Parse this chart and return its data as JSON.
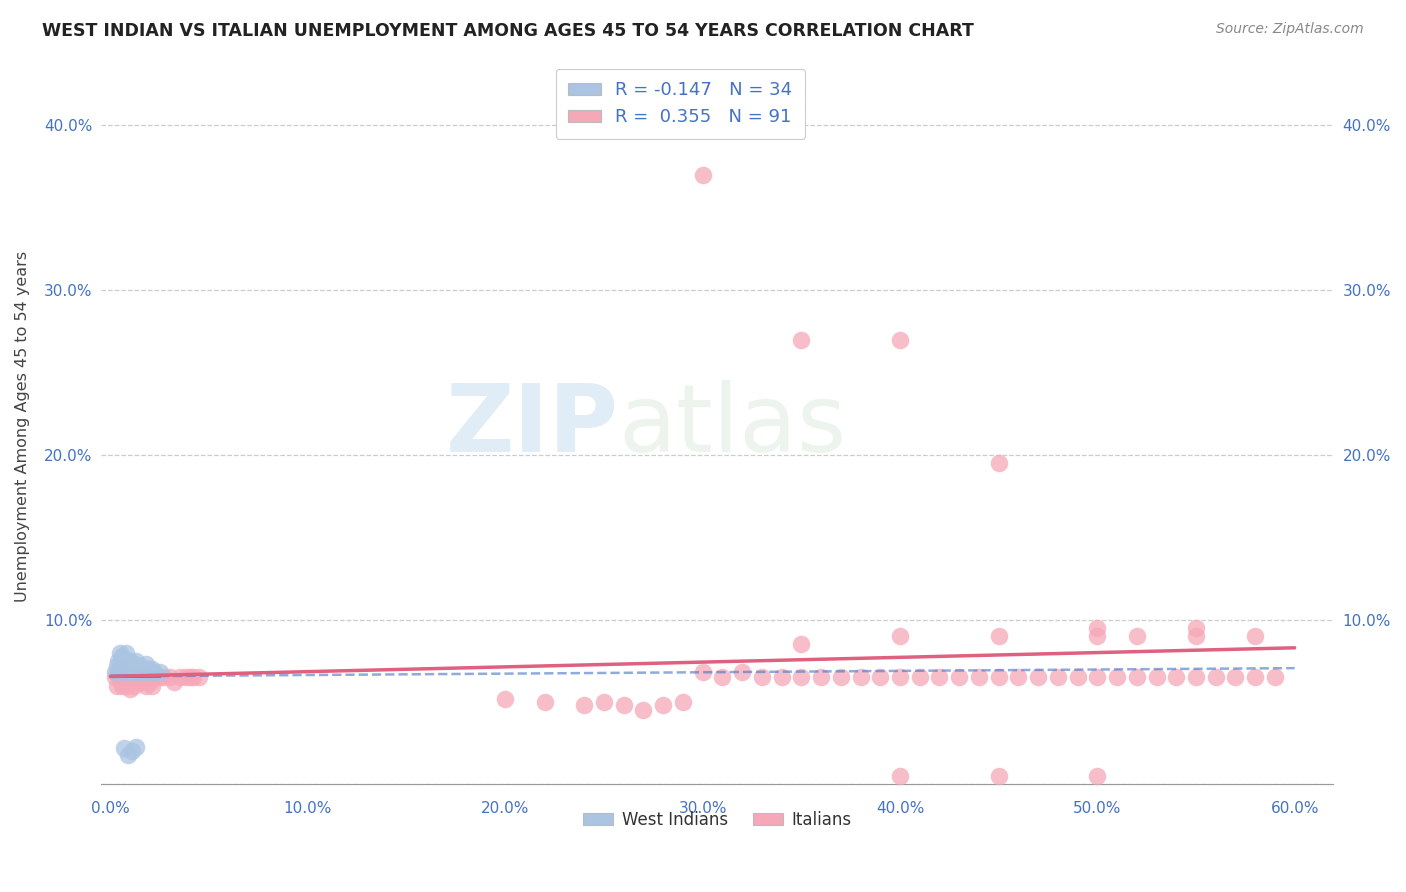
{
  "title": "WEST INDIAN VS ITALIAN UNEMPLOYMENT AMONG AGES 45 TO 54 YEARS CORRELATION CHART",
  "source": "Source: ZipAtlas.com",
  "ylabel": "Unemployment Among Ages 45 to 54 years",
  "xlim": [
    -0.005,
    0.62
  ],
  "ylim": [
    -0.005,
    0.44
  ],
  "xticks": [
    0.0,
    0.1,
    0.2,
    0.3,
    0.4,
    0.5,
    0.6
  ],
  "yticks": [
    0.0,
    0.1,
    0.2,
    0.3,
    0.4
  ],
  "west_indian_R": -0.147,
  "west_indian_N": 34,
  "italian_R": 0.355,
  "italian_N": 91,
  "west_indian_color": "#aac4e2",
  "italian_color": "#f5a8b8",
  "west_indian_line_color": "#4472c4",
  "italian_line_color": "#e06080",
  "background_color": "#ffffff",
  "grid_color": "#cccccc",
  "watermark_zip": "ZIP",
  "watermark_atlas": "atlas",
  "wi_x": [
    0.002,
    0.003,
    0.004,
    0.005,
    0.005,
    0.006,
    0.006,
    0.007,
    0.007,
    0.008,
    0.008,
    0.009,
    0.009,
    0.01,
    0.01,
    0.011,
    0.012,
    0.012,
    0.013,
    0.013,
    0.014,
    0.015,
    0.016,
    0.017,
    0.018,
    0.019,
    0.02,
    0.021,
    0.022,
    0.025,
    0.007,
    0.009,
    0.011,
    0.013
  ],
  "wi_y": [
    0.068,
    0.072,
    0.075,
    0.07,
    0.08,
    0.073,
    0.078,
    0.068,
    0.075,
    0.072,
    0.08,
    0.073,
    0.068,
    0.075,
    0.07,
    0.072,
    0.068,
    0.073,
    0.07,
    0.075,
    0.068,
    0.072,
    0.07,
    0.068,
    0.073,
    0.07,
    0.068,
    0.07,
    0.068,
    0.068,
    0.022,
    0.018,
    0.02,
    0.023
  ],
  "it_x": [
    0.002,
    0.003,
    0.004,
    0.005,
    0.005,
    0.006,
    0.006,
    0.007,
    0.007,
    0.008,
    0.008,
    0.009,
    0.009,
    0.01,
    0.01,
    0.011,
    0.012,
    0.012,
    0.013,
    0.013,
    0.014,
    0.015,
    0.016,
    0.017,
    0.018,
    0.019,
    0.02,
    0.021,
    0.022,
    0.025,
    0.027,
    0.03,
    0.032,
    0.035,
    0.038,
    0.04,
    0.042,
    0.045,
    0.2,
    0.22,
    0.24,
    0.25,
    0.26,
    0.27,
    0.28,
    0.29,
    0.3,
    0.31,
    0.32,
    0.33,
    0.34,
    0.35,
    0.36,
    0.37,
    0.38,
    0.39,
    0.4,
    0.41,
    0.42,
    0.43,
    0.44,
    0.45,
    0.46,
    0.47,
    0.48,
    0.49,
    0.5,
    0.51,
    0.52,
    0.53,
    0.54,
    0.55,
    0.56,
    0.57,
    0.58,
    0.59,
    0.3,
    0.35,
    0.4,
    0.45,
    0.5,
    0.55,
    0.35,
    0.4,
    0.45,
    0.5,
    0.52,
    0.55,
    0.58,
    0.4,
    0.45,
    0.5
  ],
  "it_y": [
    0.065,
    0.06,
    0.068,
    0.07,
    0.065,
    0.06,
    0.062,
    0.065,
    0.068,
    0.065,
    0.06,
    0.065,
    0.062,
    0.058,
    0.065,
    0.065,
    0.06,
    0.062,
    0.065,
    0.065,
    0.065,
    0.062,
    0.065,
    0.062,
    0.06,
    0.065,
    0.062,
    0.06,
    0.065,
    0.065,
    0.065,
    0.065,
    0.062,
    0.065,
    0.065,
    0.065,
    0.065,
    0.065,
    0.052,
    0.05,
    0.048,
    0.05,
    0.048,
    0.045,
    0.048,
    0.05,
    0.068,
    0.065,
    0.068,
    0.065,
    0.065,
    0.065,
    0.065,
    0.065,
    0.065,
    0.065,
    0.065,
    0.065,
    0.065,
    0.065,
    0.065,
    0.065,
    0.065,
    0.065,
    0.065,
    0.065,
    0.065,
    0.065,
    0.065,
    0.065,
    0.065,
    0.065,
    0.065,
    0.065,
    0.065,
    0.065,
    0.37,
    0.27,
    0.27,
    0.195,
    0.095,
    0.095,
    0.085,
    0.09,
    0.09,
    0.09,
    0.09,
    0.09,
    0.09,
    0.005,
    0.005,
    0.005
  ]
}
